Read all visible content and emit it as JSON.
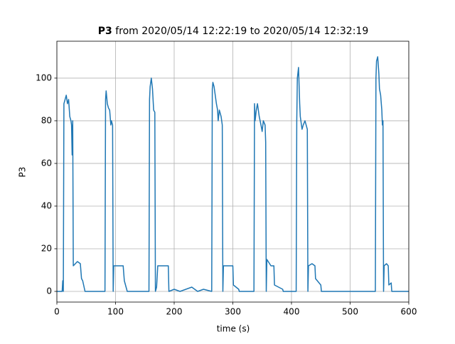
{
  "chart_data": {
    "type": "line",
    "title_parts": [
      "P3",
      "from 2020/05/14 12:22:19 to 2020/05/14 12:32:19"
    ],
    "xlabel": "time (s)",
    "ylabel": "P3",
    "x": [
      0,
      9,
      10,
      11,
      12,
      16,
      18,
      20,
      22,
      24,
      25,
      26,
      27,
      28,
      35,
      40,
      42,
      44,
      48,
      50,
      82,
      83,
      84,
      86,
      88,
      90,
      92,
      93,
      95,
      96,
      97,
      100,
      110,
      113,
      115,
      118,
      120,
      157,
      158,
      159,
      161,
      163,
      165,
      167,
      168,
      170,
      172,
      180,
      190,
      191,
      200,
      210,
      230,
      240,
      250,
      264,
      265,
      266,
      268,
      270,
      272,
      274,
      275,
      277,
      280,
      282,
      283,
      284,
      290,
      300,
      301,
      310,
      311,
      336,
      337,
      338,
      340,
      342,
      345,
      348,
      350,
      352,
      355,
      356,
      357,
      358,
      365,
      370,
      371,
      385,
      386,
      408,
      409,
      410,
      412,
      414,
      415,
      418,
      420,
      423,
      425,
      427,
      428,
      429,
      435,
      440,
      441,
      450,
      451,
      543,
      544,
      545,
      547,
      549,
      550,
      552,
      554,
      555,
      556,
      557,
      558,
      562,
      565,
      566,
      570,
      571,
      600
    ],
    "series": [
      {
        "name": "P3",
        "color": "#1f77b4",
        "values": [
          0,
          0,
          5,
          0,
          88,
          92,
          88,
          90,
          82,
          80,
          78,
          64,
          80,
          12,
          14,
          13,
          6,
          5,
          0,
          0,
          0,
          90,
          94,
          88,
          86,
          85,
          78,
          80,
          78,
          0,
          12,
          12,
          12,
          12,
          5,
          2,
          0,
          0,
          90,
          96,
          100,
          95,
          85,
          84,
          0,
          2,
          12,
          12,
          12,
          0,
          1,
          0,
          2,
          0,
          1,
          0,
          95,
          98,
          96,
          92,
          88,
          85,
          80,
          85,
          82,
          78,
          0,
          12,
          12,
          12,
          3,
          1,
          0,
          0,
          88,
          80,
          85,
          88,
          82,
          78,
          75,
          80,
          78,
          70,
          0,
          15,
          12,
          12,
          3,
          1,
          0,
          0,
          80,
          100,
          105,
          88,
          82,
          76,
          78,
          80,
          78,
          76,
          0,
          12,
          13,
          12,
          6,
          3,
          0,
          0,
          100,
          108,
          110,
          102,
          95,
          92,
          85,
          78,
          80,
          0,
          12,
          13,
          12,
          3,
          4,
          0,
          0
        ]
      }
    ],
    "xlim": [
      0,
      600
    ],
    "ylim": [
      -5,
      117.3
    ],
    "xticks": [
      0,
      100,
      200,
      300,
      400,
      500,
      600
    ],
    "yticks": [
      0,
      20,
      40,
      60,
      80,
      100
    ],
    "grid": true
  }
}
